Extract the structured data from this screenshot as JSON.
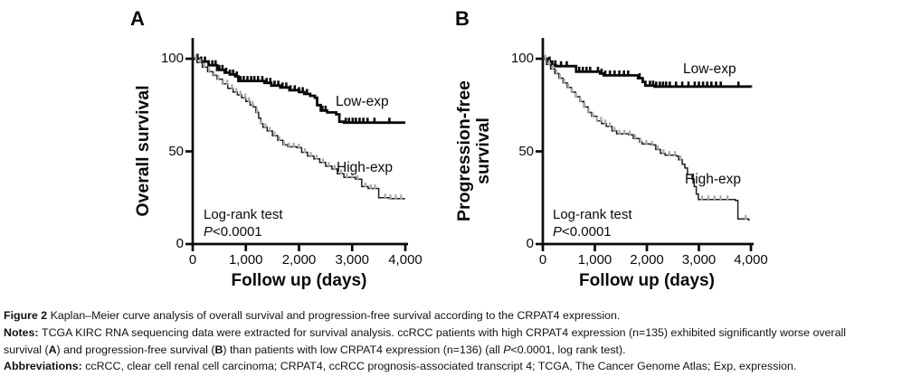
{
  "chart_data": [
    {
      "type": "line",
      "km_step": true,
      "panel": "A",
      "title": "",
      "xlabel": "Follow up (days)",
      "ylabel": "Overall survival",
      "ylabel_lines": [
        "Overall survival"
      ],
      "xlim": [
        0,
        4000
      ],
      "ylim": [
        0,
        110
      ],
      "xticks": [
        0,
        1000,
        2000,
        3000,
        4000
      ],
      "xtick_labels": [
        "0",
        "1,000",
        "2,000",
        "3,000",
        "4,000"
      ],
      "yticks": [
        0,
        50,
        100
      ],
      "ytick_labels": [
        "0",
        "50",
        "100"
      ],
      "grid": false,
      "legend_position": "inline-right",
      "annotation": {
        "line1": "Log-rank test",
        "p": "P",
        "p_rest": "<0.0001"
      },
      "series": [
        {
          "name": "Low-exp",
          "color": "#0a0a0a",
          "linewidth": 2.8,
          "censor_color": "#0a0a0a",
          "censor_width": 2.6,
          "censor_len": 5.5,
          "points": [
            [
              0,
              100
            ],
            [
              150,
              98.5
            ],
            [
              300,
              96.5
            ],
            [
              460,
              94
            ],
            [
              600,
              92.5
            ],
            [
              700,
              91.5
            ],
            [
              800,
              90.5
            ],
            [
              860,
              88
            ],
            [
              1260,
              88
            ],
            [
              1350,
              87
            ],
            [
              1480,
              85.5
            ],
            [
              1650,
              84.5
            ],
            [
              1820,
              83
            ],
            [
              2000,
              82
            ],
            [
              2100,
              81
            ],
            [
              2210,
              80
            ],
            [
              2300,
              79
            ],
            [
              2340,
              75
            ],
            [
              2410,
              72
            ],
            [
              2530,
              71
            ],
            [
              2700,
              70
            ],
            [
              2760,
              66
            ],
            [
              2850,
              65.5
            ],
            [
              4000,
              65.5
            ]
          ],
          "censor_x": [
            90,
            160,
            230,
            300,
            370,
            430,
            500,
            560,
            630,
            700,
            760,
            830,
            900,
            960,
            1030,
            1100,
            1160,
            1230,
            1310,
            1390,
            1460,
            1540,
            1610,
            1690,
            1760,
            1840,
            1920,
            2000,
            2070,
            2150,
            2440,
            2500,
            2880,
            2940,
            3010,
            3070,
            3140,
            3210,
            3290,
            3420,
            3700
          ]
        },
        {
          "name": "High-exp",
          "color": "#1f1f1f",
          "linewidth": 1.5,
          "censor_color": "#a9a9a9",
          "censor_width": 2.2,
          "censor_len": 4.5,
          "points": [
            [
              0,
              100
            ],
            [
              80,
              98
            ],
            [
              180,
              95.5
            ],
            [
              280,
              93
            ],
            [
              380,
              91
            ],
            [
              460,
              89
            ],
            [
              560,
              86.5
            ],
            [
              660,
              84
            ],
            [
              760,
              82
            ],
            [
              840,
              80.5
            ],
            [
              920,
              79
            ],
            [
              1000,
              77
            ],
            [
              1080,
              75
            ],
            [
              1140,
              74
            ],
            [
              1190,
              71
            ],
            [
              1240,
              68
            ],
            [
              1280,
              65
            ],
            [
              1320,
              63
            ],
            [
              1400,
              61
            ],
            [
              1500,
              58.5
            ],
            [
              1600,
              56
            ],
            [
              1700,
              53.5
            ],
            [
              1790,
              52.5
            ],
            [
              1960,
              52
            ],
            [
              2050,
              49.5
            ],
            [
              2160,
              47.5
            ],
            [
              2280,
              46
            ],
            [
              2390,
              44
            ],
            [
              2500,
              42
            ],
            [
              2620,
              40.5
            ],
            [
              2720,
              38
            ],
            [
              2845,
              36
            ],
            [
              3065,
              35
            ],
            [
              3180,
              31
            ],
            [
              3300,
              30
            ],
            [
              3500,
              25
            ],
            [
              3700,
              24.5
            ],
            [
              3980,
              24
            ]
          ],
          "censor_x": [
            60,
            140,
            220,
            310,
            400,
            480,
            570,
            650,
            740,
            820,
            900,
            990,
            1060,
            1130,
            1210,
            1290,
            1370,
            1450,
            1540,
            1630,
            1720,
            1810,
            1900,
            2000,
            2110,
            2220,
            2330,
            2450,
            2560,
            2670,
            2790,
            2900,
            3000,
            3100,
            3250,
            3350,
            3430,
            3620,
            3720,
            3820,
            3920
          ]
        }
      ]
    },
    {
      "type": "line",
      "km_step": true,
      "panel": "B",
      "title": "",
      "xlabel": "Follow up (days)",
      "ylabel": "Progression-free survival",
      "ylabel_lines": [
        "Progression-free",
        "survival"
      ],
      "xlim": [
        0,
        4000
      ],
      "ylim": [
        0,
        110
      ],
      "xticks": [
        0,
        1000,
        2000,
        3000,
        4000
      ],
      "xtick_labels": [
        "0",
        "1,000",
        "2,000",
        "3,000",
        "4,000"
      ],
      "yticks": [
        0,
        50,
        100
      ],
      "ytick_labels": [
        "0",
        "50",
        "100"
      ],
      "grid": false,
      "legend_position": "inline-right",
      "annotation": {
        "line1": "Log-rank test",
        "p": "P",
        "p_rest": "<0.0001"
      },
      "series": [
        {
          "name": "Low-exp",
          "color": "#0a0a0a",
          "linewidth": 2.8,
          "censor_color": "#0a0a0a",
          "censor_width": 2.6,
          "censor_len": 5.5,
          "points": [
            [
              0,
              100
            ],
            [
              110,
              98.5
            ],
            [
              180,
              96.5
            ],
            [
              250,
              96
            ],
            [
              570,
              96
            ],
            [
              640,
              93
            ],
            [
              990,
              93
            ],
            [
              1100,
              92
            ],
            [
              1170,
              91
            ],
            [
              1740,
              91
            ],
            [
              1830,
              89.5
            ],
            [
              1920,
              87.5
            ],
            [
              1970,
              85.5
            ],
            [
              2150,
              85
            ],
            [
              4000,
              84.5
            ]
          ],
          "censor_x": [
            130,
            240,
            350,
            460,
            700,
            770,
            840,
            910,
            1060,
            1130,
            1200,
            1290,
            1380,
            1470,
            1560,
            1640,
            1860,
            2060,
            2120,
            2180,
            2250,
            2310,
            2370,
            2440,
            2560,
            2680,
            2800,
            2920,
            3000,
            3080,
            3160,
            3240,
            3330,
            3420,
            3760
          ]
        },
        {
          "name": "High-exp",
          "color": "#1f1f1f",
          "linewidth": 1.5,
          "censor_color": "#a9a9a9",
          "censor_width": 2.2,
          "censor_len": 4.5,
          "points": [
            [
              0,
              100
            ],
            [
              70,
              97
            ],
            [
              150,
              94.5
            ],
            [
              230,
              92
            ],
            [
              310,
              89.5
            ],
            [
              390,
              87
            ],
            [
              470,
              84.5
            ],
            [
              550,
              82
            ],
            [
              630,
              79.5
            ],
            [
              710,
              77
            ],
            [
              790,
              74
            ],
            [
              870,
              71
            ],
            [
              940,
              69
            ],
            [
              1040,
              66.5
            ],
            [
              1130,
              65
            ],
            [
              1220,
              63.5
            ],
            [
              1330,
              61
            ],
            [
              1420,
              59.5
            ],
            [
              1650,
              59
            ],
            [
              1740,
              57
            ],
            [
              1860,
              55
            ],
            [
              1910,
              54
            ],
            [
              2080,
              53.5
            ],
            [
              2170,
              51
            ],
            [
              2260,
              49
            ],
            [
              2350,
              48
            ],
            [
              2560,
              47.5
            ],
            [
              2610,
              45.5
            ],
            [
              2680,
              43
            ],
            [
              2730,
              41
            ],
            [
              2780,
              37.5
            ],
            [
              2870,
              35
            ],
            [
              2910,
              31
            ],
            [
              2950,
              27
            ],
            [
              2990,
              24
            ],
            [
              3700,
              23.5
            ],
            [
              3750,
              13.5
            ],
            [
              3960,
              12.5
            ]
          ],
          "censor_x": [
            50,
            120,
            190,
            260,
            330,
            410,
            490,
            560,
            640,
            720,
            800,
            880,
            960,
            1040,
            1120,
            1200,
            1290,
            1380,
            1470,
            1570,
            1670,
            1770,
            1880,
            1990,
            2100,
            2210,
            2320,
            2430,
            2540,
            2650,
            3060,
            3180,
            3300,
            3420,
            3550,
            3900
          ]
        }
      ]
    }
  ],
  "caption": {
    "lines": [
      [
        {
          "text": "Figure 2 ",
          "bold": true
        },
        {
          "text": "Kaplan–Meier curve analysis of overall survival and progression-free survival according to the CRPAT4 expression."
        }
      ],
      [
        {
          "text": "Notes: ",
          "bold": true
        },
        {
          "text": "TCGA KIRC RNA sequencing data were extracted for survival analysis. ccRCC patients with high CRPAT4 expression (n=135) exhibited significantly worse overall"
        }
      ],
      [
        {
          "text": "survival ("
        },
        {
          "text": "A",
          "bold": true
        },
        {
          "text": ") and progression-free survival ("
        },
        {
          "text": "B",
          "bold": true
        },
        {
          "text": ") than patients with low CRPAT4 expression (n=136) (all "
        },
        {
          "text": "P",
          "italic": true
        },
        {
          "text": "<0.0001, log rank test)."
        }
      ],
      [
        {
          "text": "Abbreviations: ",
          "bold": true
        },
        {
          "text": "ccRCC, clear cell renal cell carcinoma; CRPAT4, ccRCC prognosis-associated transcript 4; TCGA, The Cancer Genome Atlas; Exp, expression."
        }
      ]
    ]
  }
}
